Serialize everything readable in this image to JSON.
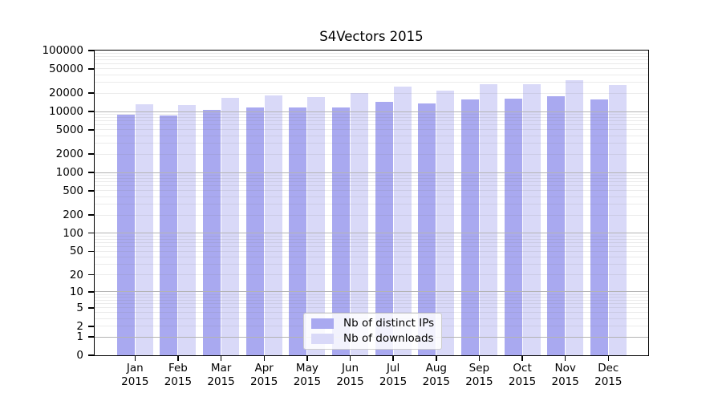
{
  "chart_data": {
    "type": "bar",
    "title": "S4Vectors 2015",
    "xlabel": "",
    "ylabel": "",
    "categories": [
      "Jan",
      "Feb",
      "Mar",
      "Apr",
      "May",
      "Jun",
      "Jul",
      "Aug",
      "Sep",
      "Oct",
      "Nov",
      "Dec"
    ],
    "x_year_label": "2015",
    "series": [
      {
        "name": "Nb of distinct IPs",
        "color": "#a9a9f0",
        "values": [
          9000,
          8700,
          10800,
          11600,
          11600,
          11700,
          14600,
          13500,
          15700,
          16500,
          17700,
          15700
        ]
      },
      {
        "name": "Nb of downloads",
        "color": "#d9d9f8",
        "values": [
          13000,
          12900,
          16800,
          18200,
          17500,
          20000,
          25900,
          22300,
          28100,
          27900,
          32400,
          27300
        ]
      }
    ],
    "y_axis": {
      "scale": "log1p",
      "min": 0,
      "max": 100000,
      "tick_values": [
        0,
        1,
        2,
        5,
        10,
        20,
        50,
        100,
        200,
        500,
        1000,
        2000,
        5000,
        10000,
        20000,
        50000,
        100000
      ]
    },
    "grid": {
      "major_at": [
        1,
        10,
        100,
        1000,
        10000
      ],
      "minor": "log multiples 2-9 per decade",
      "major_color": "#b3b3b3",
      "minor_color": "rgba(128,128,128,0.16)"
    },
    "legend": {
      "position": "lower center inside plot",
      "entries": [
        "Nb of distinct IPs",
        "Nb of downloads"
      ]
    }
  }
}
